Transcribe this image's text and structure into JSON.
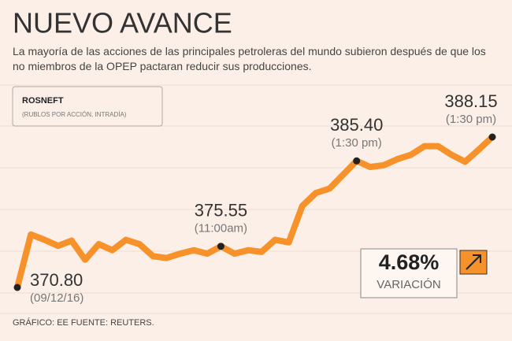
{
  "title": "NUEVO AVANCE",
  "subtitle": "La mayoría de las acciones de las principales petroleras del mundo subieron después de que los no miembros de la OPEP pactaran reducir sus producciones.",
  "chart_data": {
    "type": "line",
    "title": "ROSNEFT",
    "subtitle": "(RUBLOS POR ACCIÓN, INTRADÍA)",
    "color": "#f7922b",
    "values": [
      370.8,
      376.9,
      376.3,
      375.6,
      376.2,
      374.0,
      375.8,
      375.1,
      376.3,
      375.8,
      374.4,
      374.2,
      374.7,
      375.1,
      374.7,
      375.55,
      374.7,
      375.1,
      374.9,
      376.3,
      376.0,
      380.2,
      381.7,
      382.2,
      383.8,
      385.4,
      384.7,
      384.9,
      385.6,
      386.1,
      387.1,
      387.1,
      386.1,
      385.3,
      386.7,
      388.15
    ],
    "value_labels": [
      "370.80",
      null,
      null,
      null,
      null,
      null,
      null,
      null,
      null,
      null,
      null,
      null,
      null,
      null,
      null,
      "375.55",
      null,
      null,
      null,
      null,
      null,
      null,
      null,
      null,
      null,
      "385.40",
      null,
      null,
      null,
      null,
      null,
      null,
      null,
      null,
      null,
      "388.15"
    ],
    "time_labels": [
      "(09/12/16)",
      null,
      null,
      null,
      null,
      null,
      null,
      null,
      null,
      null,
      null,
      null,
      null,
      null,
      null,
      "(11:00am)",
      null,
      null,
      null,
      null,
      null,
      null,
      null,
      null,
      null,
      "(1:30 pm)",
      null,
      null,
      null,
      null,
      null,
      null,
      null,
      null,
      null,
      "(1:30 pm)"
    ],
    "change": {
      "value_label": "4.68%",
      "label": "VARIACIÓN"
    }
  },
  "footer": "GRÁFICO: EE  FUENTE: REUTERS."
}
